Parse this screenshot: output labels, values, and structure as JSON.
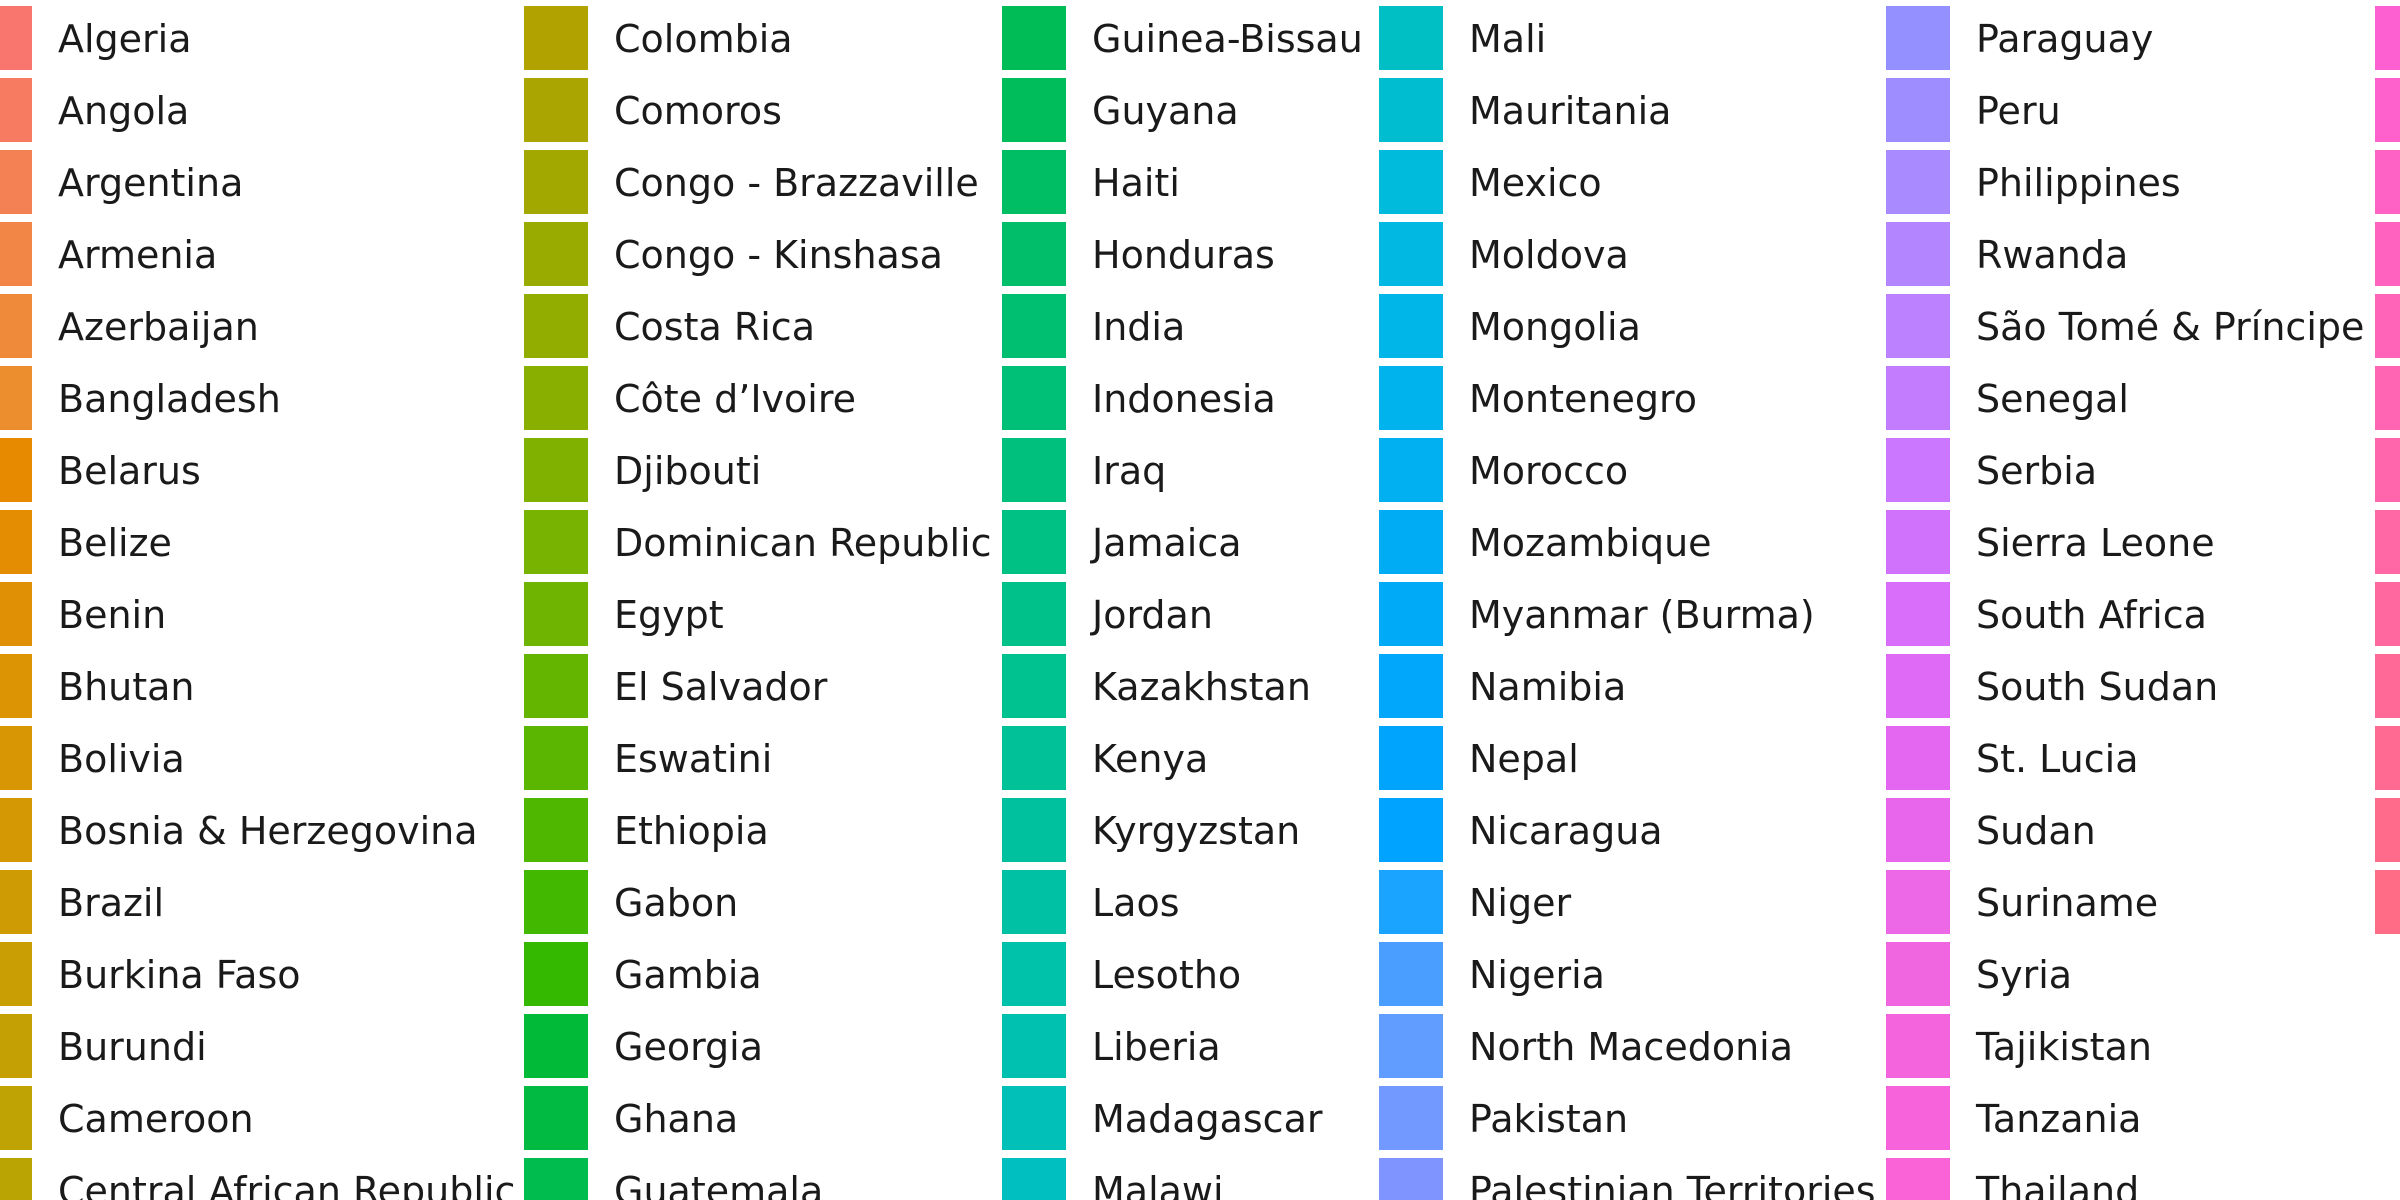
{
  "chart_data": {
    "type": "legend",
    "columns": [
      {
        "entries": [
          {
            "label": "Algeria",
            "color": "#f8766d"
          },
          {
            "label": "Angola",
            "color": "#f67b60"
          },
          {
            "label": "Argentina",
            "color": "#f48153"
          },
          {
            "label": "Armenia",
            "color": "#f28647"
          },
          {
            "label": "Azerbaijan",
            "color": "#f08a3b"
          },
          {
            "label": "Bangladesh",
            "color": "#ed8e2e"
          },
          {
            "label": "Belarus",
            "color": "#e78a00"
          },
          {
            "label": "Belize",
            "color": "#e48d03"
          },
          {
            "label": "Benin",
            "color": "#e09004"
          },
          {
            "label": "Bhutan",
            "color": "#dc9304"
          },
          {
            "label": "Bolivia",
            "color": "#d89604"
          },
          {
            "label": "Bosnia & Herzegovina",
            "color": "#d39804"
          },
          {
            "label": "Brazil",
            "color": "#ce9b04"
          },
          {
            "label": "Burkina Faso",
            "color": "#c99d04"
          },
          {
            "label": "Burundi",
            "color": "#c4a004"
          },
          {
            "label": "Cameroon",
            "color": "#bfa204"
          },
          {
            "label": "Central African Republic",
            "color": "#baa404"
          }
        ]
      },
      {
        "entries": [
          {
            "label": "Colombia",
            "color": "#b2a200"
          },
          {
            "label": "Comoros",
            "color": "#aaa500"
          },
          {
            "label": "Congo - Brazzaville",
            "color": "#a2a800"
          },
          {
            "label": "Congo - Kinshasa",
            "color": "#9aab00"
          },
          {
            "label": "Costa Rica",
            "color": "#92ad00"
          },
          {
            "label": "Côte d’Ivoire",
            "color": "#89af00"
          },
          {
            "label": "Djibouti",
            "color": "#80b100"
          },
          {
            "label": "Dominican Republic",
            "color": "#77b300"
          },
          {
            "label": "Egypt",
            "color": "#6eb400"
          },
          {
            "label": "El Salvador",
            "color": "#64b500"
          },
          {
            "label": "Eswatini",
            "color": "#5ab600"
          },
          {
            "label": "Ethiopia",
            "color": "#4fb700"
          },
          {
            "label": "Gabon",
            "color": "#43b800"
          },
          {
            "label": "Gambia",
            "color": "#35b800"
          },
          {
            "label": "Georgia",
            "color": "#00ba38"
          },
          {
            "label": "Ghana",
            "color": "#00ba42"
          },
          {
            "label": "Guatemala",
            "color": "#00bb4e"
          }
        ]
      },
      {
        "entries": [
          {
            "label": "Guinea-Bissau",
            "color": "#00bc56"
          },
          {
            "label": "Guyana",
            "color": "#00bd5c"
          },
          {
            "label": "Haiti",
            "color": "#00be63"
          },
          {
            "label": "Honduras",
            "color": "#00be6a"
          },
          {
            "label": "India",
            "color": "#00bf70"
          },
          {
            "label": "Indonesia",
            "color": "#00c077"
          },
          {
            "label": "Iraq",
            "color": "#00c07d"
          },
          {
            "label": "Jamaica",
            "color": "#00c184"
          },
          {
            "label": "Jordan",
            "color": "#00c18a"
          },
          {
            "label": "Kazakhstan",
            "color": "#00c190"
          },
          {
            "label": "Kenya",
            "color": "#00c197"
          },
          {
            "label": "Kyrgyzstan",
            "color": "#00c19d"
          },
          {
            "label": "Laos",
            "color": "#00c1a3"
          },
          {
            "label": "Lesotho",
            "color": "#00c1a9"
          },
          {
            "label": "Liberia",
            "color": "#00c0b0"
          },
          {
            "label": "Madagascar",
            "color": "#00c0b7"
          },
          {
            "label": "Malawi",
            "color": "#00bfc0"
          }
        ]
      },
      {
        "entries": [
          {
            "label": "Mali",
            "color": "#00bfc4"
          },
          {
            "label": "Mauritania",
            "color": "#00bdd0"
          },
          {
            "label": "Mexico",
            "color": "#00bbdb"
          },
          {
            "label": "Moldova",
            "color": "#00b8e2"
          },
          {
            "label": "Mongolia",
            "color": "#00b6e8"
          },
          {
            "label": "Montenegro",
            "color": "#00b3ed"
          },
          {
            "label": "Morocco",
            "color": "#00b0f0"
          },
          {
            "label": "Mozambique",
            "color": "#00adf4"
          },
          {
            "label": "Myanmar (Burma)",
            "color": "#00aaf7"
          },
          {
            "label": "Namibia",
            "color": "#00a7fa"
          },
          {
            "label": "Nepal",
            "color": "#00a4fc"
          },
          {
            "label": "Nicaragua",
            "color": "#00a3ff"
          },
          {
            "label": "Niger",
            "color": "#1aa3ff"
          },
          {
            "label": "Nigeria",
            "color": "#4a9eff"
          },
          {
            "label": "North Macedonia",
            "color": "#619cff"
          },
          {
            "label": "Pakistan",
            "color": "#7199ff"
          },
          {
            "label": "Palestinian Territories",
            "color": "#8094ff"
          }
        ]
      },
      {
        "entries": [
          {
            "label": "Paraguay",
            "color": "#9590ff"
          },
          {
            "label": "Peru",
            "color": "#9d8dff"
          },
          {
            "label": "Philippines",
            "color": "#a98aff"
          },
          {
            "label": "Rwanda",
            "color": "#b386ff"
          },
          {
            "label": "São Tomé & Príncipe",
            "color": "#bc81ff"
          },
          {
            "label": "Senegal",
            "color": "#c47cff"
          },
          {
            "label": "Serbia",
            "color": "#cb77ff"
          },
          {
            "label": "Sierra Leone",
            "color": "#d172fd"
          },
          {
            "label": "South Africa",
            "color": "#d86ef9"
          },
          {
            "label": "South Sudan",
            "color": "#de6af5"
          },
          {
            "label": "St. Lucia",
            "color": "#e367f1"
          },
          {
            "label": "Sudan",
            "color": "#e766ec"
          },
          {
            "label": "Suriname",
            "color": "#ec68e6"
          },
          {
            "label": "Syria",
            "color": "#f066e0"
          },
          {
            "label": "Tajikistan",
            "color": "#f464dc"
          },
          {
            "label": "Tanzania",
            "color": "#f763db"
          },
          {
            "label": "Thailand",
            "color": "#fa62d8"
          }
        ]
      },
      {
        "entries": [
          {
            "label": "",
            "color": "#fd61d1"
          },
          {
            "label": "",
            "color": "#ff61cc"
          },
          {
            "label": "",
            "color": "#ff62c5"
          },
          {
            "label": "",
            "color": "#ff63bf"
          },
          {
            "label": "",
            "color": "#ff64b8"
          },
          {
            "label": "",
            "color": "#ff65b2"
          },
          {
            "label": "",
            "color": "#ff66ac"
          },
          {
            "label": "",
            "color": "#ff67a5"
          },
          {
            "label": "",
            "color": "#ff689f"
          },
          {
            "label": "",
            "color": "#ff6998"
          },
          {
            "label": "",
            "color": "#ff6a92"
          },
          {
            "label": "",
            "color": "#ff6b8b"
          },
          {
            "label": "",
            "color": "#ff6c85"
          }
        ]
      }
    ]
  }
}
